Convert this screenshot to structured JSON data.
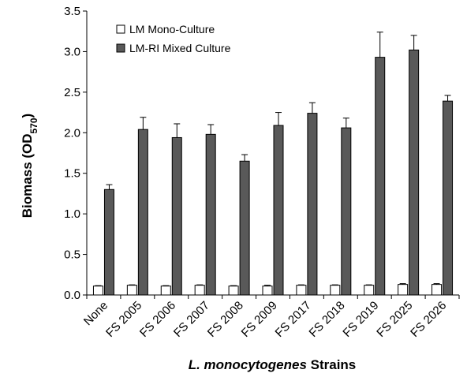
{
  "chart_data": {
    "type": "bar",
    "categories": [
      "None",
      "FS 2005",
      "FS 2006",
      "FS 2007",
      "FS 2008",
      "FS 2009",
      "FS 2017",
      "FS 2018",
      "FS 2019",
      "FS 2025",
      "FS 2026"
    ],
    "series": [
      {
        "name": "LM Mono-Culture",
        "color": "#ffffff",
        "values": [
          0.11,
          0.12,
          0.11,
          0.12,
          0.11,
          0.11,
          0.12,
          0.12,
          0.12,
          0.13,
          0.13
        ],
        "errors": [
          0.005,
          0.005,
          0.005,
          0.005,
          0.005,
          0.01,
          0.005,
          0.005,
          0.005,
          0.01,
          0.01
        ]
      },
      {
        "name": "LM-RI Mixed Culture",
        "color": "#595959",
        "values": [
          1.3,
          2.04,
          1.94,
          1.98,
          1.65,
          2.09,
          2.24,
          2.06,
          2.93,
          3.02,
          2.39
        ],
        "errors": [
          0.06,
          0.15,
          0.17,
          0.12,
          0.08,
          0.16,
          0.13,
          0.12,
          0.31,
          0.18,
          0.07
        ]
      }
    ],
    "ylabel_main": "Biomass (OD",
    "ylabel_sub": "570",
    "ylabel_close": ")",
    "xlabel_italic": "L. monocytogenes",
    "xlabel_rest": " Strains",
    "ylim": [
      0,
      3.5
    ],
    "yticks": [
      "0.0",
      "0.5",
      "1.0",
      "1.5",
      "2.0",
      "2.5",
      "3.0",
      "3.5"
    ],
    "grid": false,
    "legend_position": "top-left"
  }
}
